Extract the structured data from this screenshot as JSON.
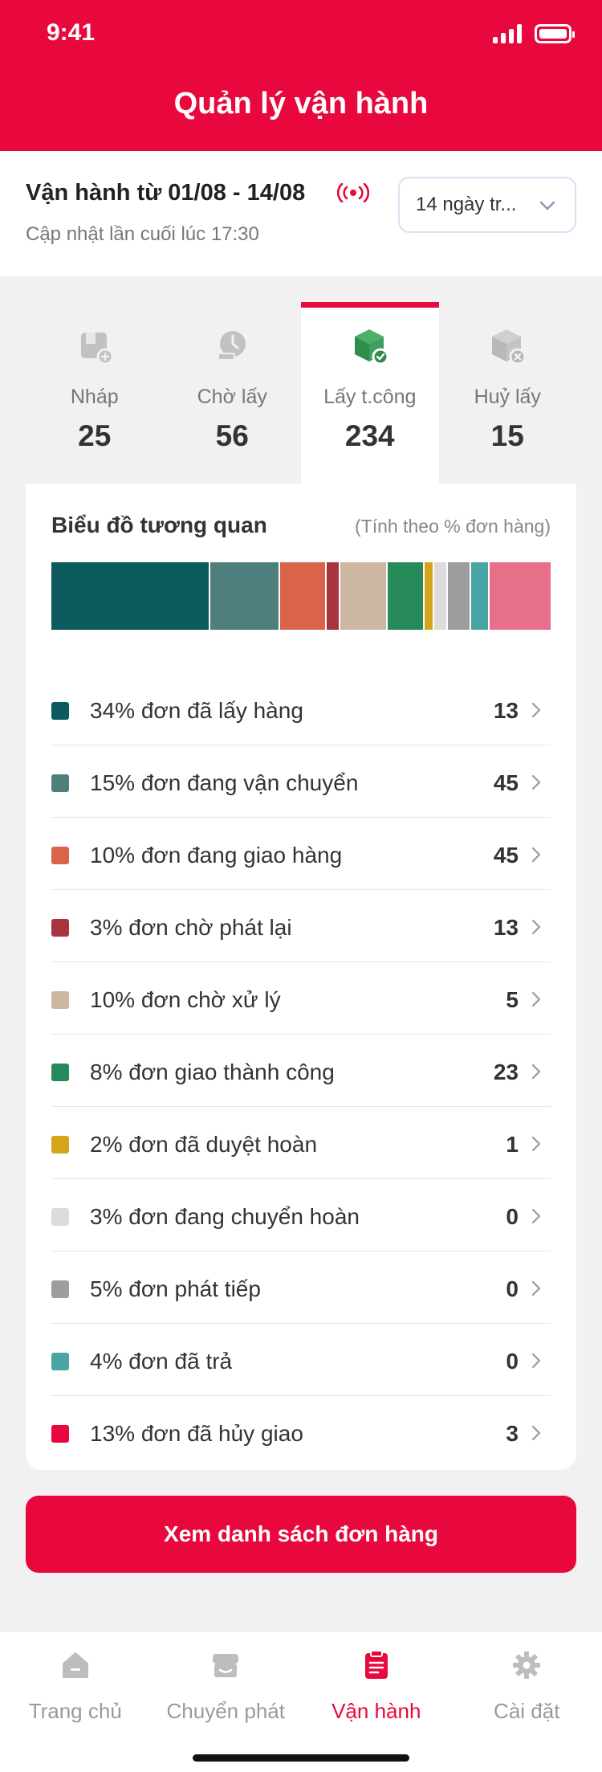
{
  "status_bar": {
    "time": "9:41"
  },
  "header": {
    "title": "Quản lý vận hành"
  },
  "period": {
    "title": "Vận hành từ  01/08 - 14/08",
    "subtitle": "Cập nhật lần cuối lúc 17:30",
    "select_value": "14 ngày tr..."
  },
  "tabs": [
    {
      "label": "Nháp",
      "count": "25",
      "icon": "draft-box-icon",
      "active": false
    },
    {
      "label": "Chờ lấy",
      "count": "56",
      "icon": "clock-box-icon",
      "active": false
    },
    {
      "label": "Lấy t.công",
      "count": "234",
      "icon": "box-check-icon",
      "active": true
    },
    {
      "label": "Huỷ lấy",
      "count": "15",
      "icon": "box-cancel-icon",
      "active": false
    }
  ],
  "chart": {
    "title": "Biểu đồ tương quan",
    "note": "(Tính theo % đơn hàng)"
  },
  "chart_data": {
    "type": "bar",
    "stacked": true,
    "orientation": "horizontal",
    "categories": [
      "đơn đã lấy hàng",
      "đơn đang vận chuyển",
      "đơn đang giao hàng",
      "đơn chờ phát lại",
      "đơn chờ xử lý",
      "đơn giao thành công",
      "đơn đã duyệt hoàn",
      "đơn đang chuyển hoàn",
      "đơn phát tiếp",
      "đơn đã trả",
      "đơn đã hủy giao"
    ],
    "values": [
      34,
      15,
      10,
      3,
      10,
      8,
      2,
      3,
      5,
      4,
      13
    ],
    "colors": [
      "#0b5a5e",
      "#4f7f7d",
      "#d9644a",
      "#a8333e",
      "#cdb7a3",
      "#268a5a",
      "#d4a51b",
      "#dcdcdc",
      "#9e9e9e",
      "#4aa3a4",
      "#e86f8a"
    ]
  },
  "legend": [
    {
      "label": "34% đơn đã lấy hàng",
      "count": "13",
      "color": "#0b5a5e"
    },
    {
      "label": "15% đơn đang vận chuyển",
      "count": "45",
      "color": "#4f7f7d"
    },
    {
      "label": "10% đơn đang giao hàng",
      "count": "45",
      "color": "#d9644a"
    },
    {
      "label": "3% đơn chờ phát lại",
      "count": "13",
      "color": "#a8333e"
    },
    {
      "label": "10% đơn chờ xử lý",
      "count": "5",
      "color": "#cdb7a3"
    },
    {
      "label": "8% đơn giao thành công",
      "count": "23",
      "color": "#268a5a"
    },
    {
      "label": "2% đơn đã duyệt hoàn",
      "count": "1",
      "color": "#d4a51b"
    },
    {
      "label": "3% đơn đang chuyển hoàn",
      "count": "0",
      "color": "#dcdcdc"
    },
    {
      "label": "5% đơn phát tiếp",
      "count": "0",
      "color": "#9e9e9e"
    },
    {
      "label": "4% đơn đã trả",
      "count": "0",
      "color": "#4aa3a4"
    },
    {
      "label": "13% đơn đã hủy giao",
      "count": "3",
      "color": "#e8083d"
    }
  ],
  "cta": {
    "label": "Xem danh sách đơn hàng"
  },
  "bottom_nav": [
    {
      "label": "Trang chủ",
      "icon": "home-icon",
      "active": false
    },
    {
      "label": "Chuyển phát",
      "icon": "shipping-icon",
      "active": false
    },
    {
      "label": "Vận hành",
      "icon": "clipboard-icon",
      "active": true
    },
    {
      "label": "Cài đặt",
      "icon": "gear-icon",
      "active": false
    }
  ],
  "colors": {
    "brand": "#e8083d"
  }
}
